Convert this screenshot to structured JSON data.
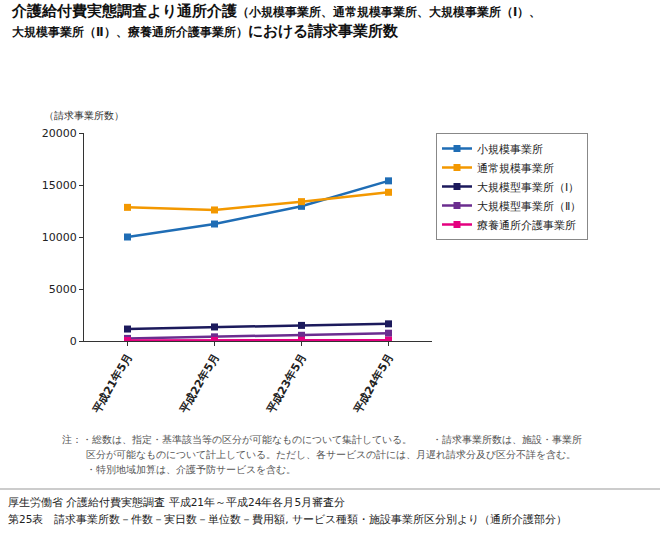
{
  "chart_data": {
    "type": "line",
    "title": [
      "介護給付費実態調査より通所介護（小規模事業所、通常規模事業所、大規模事業所（Ⅰ）、",
      "大規模事業所（Ⅱ）、療養通所介護事業所）における請求事業所数"
    ],
    "ylabel": "（請求事業所数）",
    "categories": [
      "平成21年5月",
      "平成22年5月",
      "平成23年5月",
      "平成24年5月"
    ],
    "series": [
      {
        "name": "小規模事業所",
        "color": "#1f6db5",
        "values": [
          10000,
          11250,
          12950,
          15400
        ]
      },
      {
        "name": "通常規模事業所",
        "color": "#f39800",
        "values": [
          12850,
          12600,
          13400,
          14300
        ]
      },
      {
        "name": "大規模型事業所（Ⅰ）",
        "color": "#1c1a5c",
        "values": [
          1150,
          1350,
          1500,
          1650
        ]
      },
      {
        "name": "大規模型事業所（Ⅱ）",
        "color": "#6b2d8f",
        "values": [
          250,
          400,
          550,
          750
        ]
      },
      {
        "name": "療養通所介護事業所",
        "color": "#e4007f",
        "values": [
          50,
          60,
          70,
          80
        ]
      }
    ],
    "ylim": [
      0,
      20000
    ],
    "yticks": [
      0,
      5000,
      10000,
      15000,
      20000
    ],
    "grid": false,
    "legend": "top-right",
    "marker": "square",
    "line_style": "solid",
    "notes": [
      "注：・総数は、指定・基準該当等の区分が可能なものについて集計している。　　・請求事業所数は、施設・事業所",
      "区分が可能なものについて計上している。ただし、各サービスの計には、月遅れ請求分及び区分不詳を含む。",
      "・特別地域加算は、介護予防サービスを含む。"
    ],
    "source": [
      "厚生労働省 介護給付費実態調査 平成21年～平成24年各月5月審査分",
      "第25表　請求事業所数－件数－実日数－単位数－費用額, サービス種類・施設事業所区分別より（通所介護部分）"
    ]
  }
}
